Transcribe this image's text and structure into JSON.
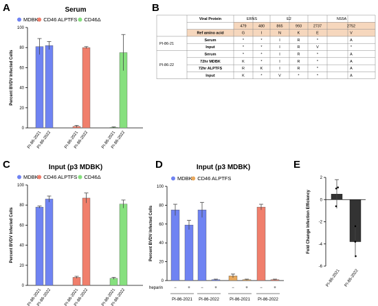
{
  "colors": {
    "mdbk": "#6f83f2",
    "alptfs": "#f07f6c",
    "cd46d": "#86e07e",
    "heparin_bar": "#e8a85c",
    "fold_bar": "#333333",
    "table_header": "#f6d7bd",
    "table_line": "#888888"
  },
  "panels": {
    "A": {
      "letter": "A",
      "title": "Serum"
    },
    "B": {
      "letter": "B"
    },
    "C": {
      "letter": "C",
      "title": "Input (p3 MDBK)"
    },
    "D": {
      "letter": "D",
      "title": "Input (p3 MDBK)"
    },
    "E": {
      "letter": "E"
    }
  },
  "chart_data": [
    {
      "id": "A",
      "type": "bar",
      "title": "Serum",
      "ylabel": "Percent BVDV Infected Cells",
      "ylim": [
        0,
        100
      ],
      "yticks": [
        0,
        20,
        40,
        60,
        80,
        100
      ],
      "legend": [
        "MDBK",
        "CD46 ALPTFS",
        "CD46Δ"
      ],
      "legend_placement": "top",
      "groups": [
        {
          "name": "MDBK",
          "categories": [
            "PI-86-2021",
            "PI-86-2022"
          ],
          "values": [
            81,
            82
          ],
          "errors": [
            8,
            4
          ]
        },
        {
          "name": "CD46 ALPTFS",
          "categories": [
            "PI-86-2021",
            "PI-86-2022"
          ],
          "values": [
            1.5,
            80
          ],
          "errors": [
            1,
            1
          ]
        },
        {
          "name": "CD46Δ",
          "categories": [
            "PI-86-2021",
            "PI-86-2022"
          ],
          "values": [
            0.5,
            75
          ],
          "errors": [
            0.5,
            18
          ]
        }
      ]
    },
    {
      "id": "C",
      "type": "bar",
      "title": "Input (p3 MDBK)",
      "ylabel": "Percent BVDV Infected Cells",
      "ylim": [
        0,
        100
      ],
      "yticks": [
        0,
        20,
        40,
        60,
        80,
        100
      ],
      "legend": [
        "MDBK",
        "CD46 ALPTFS",
        "CD46Δ"
      ],
      "legend_placement": "top",
      "groups": [
        {
          "name": "MDBK",
          "categories": [
            "PI-86-2021",
            "PI-86-2022"
          ],
          "values": [
            78,
            86
          ],
          "errors": [
            1,
            3
          ]
        },
        {
          "name": "CD46 ALPTFS",
          "categories": [
            "PI-86-2021",
            "PI-86-2022"
          ],
          "values": [
            8,
            87
          ],
          "errors": [
            1,
            5
          ]
        },
        {
          "name": "CD46Δ",
          "categories": [
            "PI-86-2021",
            "PI-86-2022"
          ],
          "values": [
            7,
            81
          ],
          "errors": [
            1,
            4
          ]
        }
      ]
    },
    {
      "id": "D",
      "type": "bar",
      "title": "Input (p3 MDBK)",
      "ylabel": "Percent BVDV Infected Cells",
      "ylim": [
        0,
        100
      ],
      "yticks": [
        0,
        20,
        40,
        60,
        80,
        100
      ],
      "legend": [
        "MDBK",
        "CD46 ALPTFS"
      ],
      "legend_placement": "top",
      "x_row_label": "heparin",
      "heparin_signs": [
        "−",
        "+",
        "−",
        "+",
        "−",
        "+",
        "−",
        "+"
      ],
      "group_labels": [
        "PI-86-2021",
        "PI-86-2022",
        "PI-86-2021",
        "PI-86-2022"
      ],
      "bars": [
        {
          "group": "MDBK",
          "sample": "PI-86-2021",
          "heparin": "−",
          "value": 75,
          "error": 6
        },
        {
          "group": "MDBK",
          "sample": "PI-86-2021",
          "heparin": "+",
          "value": 59,
          "error": 5
        },
        {
          "group": "MDBK",
          "sample": "PI-86-2022",
          "heparin": "−",
          "value": 75,
          "error": 8
        },
        {
          "group": "MDBK",
          "sample": "PI-86-2022",
          "heparin": "+",
          "value": 1,
          "error": 0.5
        },
        {
          "group": "CD46 ALPTFS",
          "sample": "PI-86-2021",
          "heparin": "−",
          "value": 5,
          "error": 2
        },
        {
          "group": "CD46 ALPTFS",
          "sample": "PI-86-2021",
          "heparin": "+",
          "value": 1,
          "error": 0.5
        },
        {
          "group": "CD46 ALPTFS",
          "sample": "PI-86-2022",
          "heparin": "−",
          "value": 78,
          "error": 3
        },
        {
          "group": "CD46 ALPTFS",
          "sample": "PI-86-2022",
          "heparin": "+",
          "value": 1,
          "error": 0.5
        }
      ]
    },
    {
      "id": "E",
      "type": "bar",
      "ylabel": "Fold Change Infection Efficiency",
      "ylim": [
        -6,
        2
      ],
      "yticks": [
        2,
        0,
        -2,
        -4,
        -6
      ],
      "categories": [
        "PI-86-2021",
        "PI-86-2022"
      ],
      "values": [
        0.5,
        -3.8
      ],
      "errors": [
        1.3,
        1.4
      ],
      "points": [
        [
          1.0,
          1.1,
          -0.6
        ],
        [
          -2.4,
          -3.8,
          -5.1
        ]
      ]
    },
    {
      "id": "B",
      "type": "table",
      "header_row1": [
        "Viral Protein",
        "ERNS",
        "E2",
        "NS5A"
      ],
      "positions": [
        "479",
        "480",
        "865",
        "993",
        "2737",
        "2752"
      ],
      "ref_label": "Ref amino acid",
      "ref": [
        "G",
        "I",
        "N",
        "K",
        "E",
        "V"
      ],
      "blocks": [
        {
          "sample": "PI-86-21",
          "rows": [
            {
              "label": "Serum",
              "cells": [
                "*",
                "*",
                "I",
                "R",
                "*",
                "A"
              ]
            },
            {
              "label": "Input",
              "cells": [
                "*",
                "*",
                "I",
                "R",
                "V",
                "*"
              ]
            }
          ]
        },
        {
          "sample": "PI-86-22",
          "rows": [
            {
              "label": "Serum",
              "cells": [
                "*",
                "*",
                "I",
                "R",
                "*",
                "A"
              ]
            },
            {
              "label": "72hr MDBK",
              "cells": [
                "K",
                "*",
                "I",
                "R",
                "*",
                "A"
              ]
            },
            {
              "label": "72hr ALPTFS",
              "cells": [
                "R",
                "K",
                "I",
                "R",
                "*",
                "A"
              ]
            },
            {
              "label": "Input",
              "cells": [
                "K",
                "*",
                "V",
                "*",
                "*",
                "A"
              ]
            }
          ]
        }
      ]
    }
  ]
}
